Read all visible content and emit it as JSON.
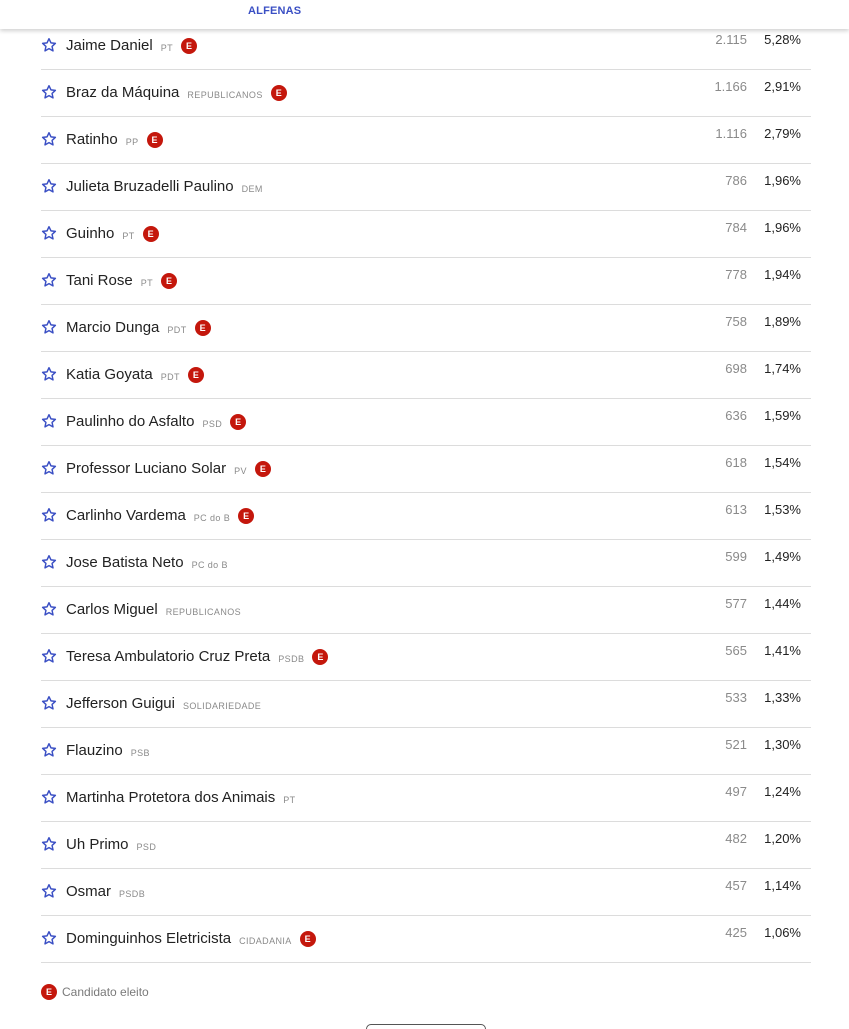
{
  "header": {
    "city": "ALFENAS"
  },
  "elected_badge": "E",
  "candidates": [
    {
      "name": "Jaime Daniel",
      "party": "PT",
      "elected": true,
      "votes": "2.115",
      "pct": "5,28%"
    },
    {
      "name": "Braz da Máquina",
      "party": "REPUBLICANOS",
      "elected": true,
      "votes": "1.166",
      "pct": "2,91%"
    },
    {
      "name": "Ratinho",
      "party": "PP",
      "elected": true,
      "votes": "1.116",
      "pct": "2,79%"
    },
    {
      "name": "Julieta Bruzadelli Paulino",
      "party": "DEM",
      "elected": false,
      "votes": "786",
      "pct": "1,96%"
    },
    {
      "name": "Guinho",
      "party": "PT",
      "elected": true,
      "votes": "784",
      "pct": "1,96%"
    },
    {
      "name": "Tani Rose",
      "party": "PT",
      "elected": true,
      "votes": "778",
      "pct": "1,94%"
    },
    {
      "name": "Marcio Dunga",
      "party": "PDT",
      "elected": true,
      "votes": "758",
      "pct": "1,89%"
    },
    {
      "name": "Katia Goyata",
      "party": "PDT",
      "elected": true,
      "votes": "698",
      "pct": "1,74%"
    },
    {
      "name": "Paulinho do Asfalto",
      "party": "PSD",
      "elected": true,
      "votes": "636",
      "pct": "1,59%"
    },
    {
      "name": "Professor Luciano Solar",
      "party": "PV",
      "elected": true,
      "votes": "618",
      "pct": "1,54%"
    },
    {
      "name": "Carlinho Vardema",
      "party": "PC do B",
      "elected": true,
      "votes": "613",
      "pct": "1,53%"
    },
    {
      "name": "Jose Batista Neto",
      "party": "PC do B",
      "elected": false,
      "votes": "599",
      "pct": "1,49%"
    },
    {
      "name": "Carlos Miguel",
      "party": "REPUBLICANOS",
      "elected": false,
      "votes": "577",
      "pct": "1,44%"
    },
    {
      "name": "Teresa Ambulatorio Cruz Preta",
      "party": "PSDB",
      "elected": true,
      "votes": "565",
      "pct": "1,41%"
    },
    {
      "name": "Jefferson Guigui",
      "party": "SOLIDARIEDADE",
      "elected": false,
      "votes": "533",
      "pct": "1,33%"
    },
    {
      "name": "Flauzino",
      "party": "PSB",
      "elected": false,
      "votes": "521",
      "pct": "1,30%"
    },
    {
      "name": "Martinha Protetora dos Animais",
      "party": "PT",
      "elected": false,
      "votes": "497",
      "pct": "1,24%"
    },
    {
      "name": "Uh Primo",
      "party": "PSD",
      "elected": false,
      "votes": "482",
      "pct": "1,20%"
    },
    {
      "name": "Osmar",
      "party": "PSDB",
      "elected": false,
      "votes": "457",
      "pct": "1,14%"
    },
    {
      "name": "Dominguinhos Eletricista",
      "party": "CIDADANIA",
      "elected": true,
      "votes": "425",
      "pct": "1,06%"
    }
  ],
  "legend": {
    "badge": "E",
    "text": "Candidato eleito"
  },
  "colors": {
    "accent": "#3a4fc4",
    "elected": "#c4170c",
    "divider": "#dcdcdc"
  },
  "icons": {
    "favorite": "star-outline-icon"
  }
}
